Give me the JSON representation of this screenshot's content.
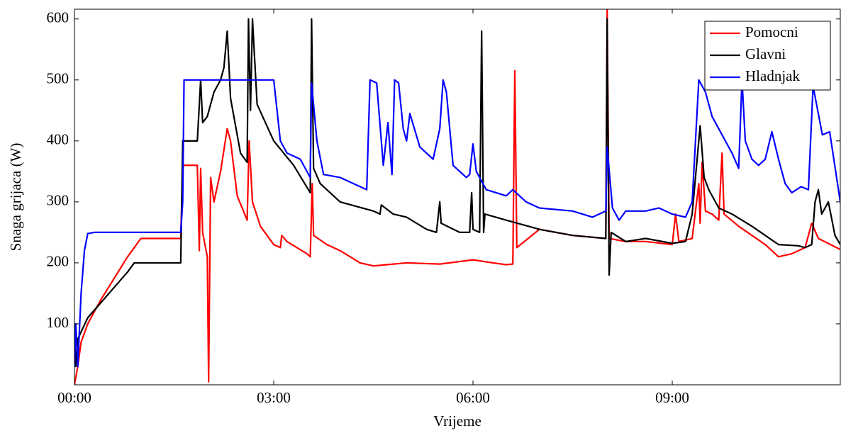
{
  "chart_data": {
    "type": "line",
    "x_label": "Vrijeme",
    "y_label": "Snaga grijaca (W)",
    "xlim": [
      0,
      11.53
    ],
    "ylim": [
      0,
      616
    ],
    "xticks": [
      {
        "value": 0,
        "label": "00:00"
      },
      {
        "value": 3,
        "label": "03:00"
      },
      {
        "value": 6,
        "label": "06:00"
      },
      {
        "value": 9,
        "label": "09:00"
      }
    ],
    "yticks": [
      100,
      200,
      300,
      400,
      500,
      600
    ],
    "legend": "top-right",
    "series": [
      {
        "name": "Pomocni",
        "color": "#ff0000",
        "x": [
          0,
          0.05,
          0.1,
          0.2,
          0.4,
          0.6,
          0.8,
          0.9,
          1.0,
          1.6,
          1.63,
          1.85,
          1.88,
          1.9,
          1.93,
          2.0,
          2.02,
          2.05,
          2.1,
          2.2,
          2.3,
          2.35,
          2.45,
          2.6,
          2.63,
          2.68,
          2.8,
          3.0,
          3.1,
          3.12,
          3.2,
          3.5,
          3.55,
          3.58,
          3.6,
          3.8,
          4.0,
          4.3,
          4.5,
          5.0,
          5.5,
          6.0,
          6.3,
          6.5,
          6.6,
          6.63,
          6.66,
          7.0,
          7.5,
          8.0,
          8.02,
          8.05,
          8.3,
          8.6,
          9.0,
          9.05,
          9.1,
          9.3,
          9.4,
          9.42,
          9.45,
          9.5,
          9.6,
          9.7,
          9.75,
          9.78,
          10.0,
          10.2,
          10.4,
          10.6,
          10.8,
          11.0,
          11.1,
          11.2,
          11.53
        ],
        "values": [
          0,
          30,
          70,
          100,
          140,
          175,
          210,
          225,
          240,
          240,
          360,
          360,
          220,
          355,
          250,
          210,
          5,
          340,
          300,
          350,
          420,
          400,
          310,
          270,
          400,
          300,
          260,
          230,
          225,
          245,
          235,
          215,
          210,
          330,
          245,
          230,
          220,
          200,
          195,
          200,
          198,
          205,
          200,
          197,
          198,
          515,
          225,
          255,
          245,
          240,
          615,
          240,
          235,
          235,
          230,
          280,
          235,
          240,
          330,
          265,
          365,
          285,
          280,
          270,
          380,
          280,
          260,
          245,
          230,
          210,
          215,
          225,
          265,
          240,
          222
        ]
      },
      {
        "name": "Glavni",
        "color": "#000000",
        "x": [
          0,
          0.02,
          0.05,
          0.2,
          0.4,
          0.6,
          0.8,
          0.9,
          1.6,
          1.63,
          1.85,
          1.9,
          1.93,
          2.0,
          2.1,
          2.2,
          2.25,
          2.3,
          2.35,
          2.5,
          2.6,
          2.62,
          2.65,
          2.68,
          2.75,
          3.0,
          3.3,
          3.55,
          3.57,
          3.6,
          3.7,
          4.0,
          4.5,
          4.6,
          4.62,
          4.8,
          5.0,
          5.3,
          5.45,
          5.5,
          5.52,
          5.8,
          5.95,
          5.98,
          6.0,
          6.1,
          6.13,
          6.16,
          6.18,
          6.5,
          7.0,
          7.5,
          8.0,
          8.02,
          8.05,
          8.08,
          8.3,
          8.6,
          9.0,
          9.2,
          9.3,
          9.42,
          9.48,
          9.55,
          9.7,
          9.9,
          10.2,
          10.6,
          10.9,
          11.0,
          11.1,
          11.15,
          11.2,
          11.25,
          11.35,
          11.45,
          11.53
        ],
        "values": [
          100,
          30,
          75,
          110,
          135,
          160,
          185,
          200,
          200,
          400,
          400,
          500,
          430,
          440,
          480,
          500,
          520,
          580,
          470,
          380,
          365,
          600,
          450,
          600,
          460,
          400,
          360,
          315,
          600,
          355,
          330,
          300,
          285,
          280,
          295,
          280,
          275,
          255,
          250,
          300,
          265,
          250,
          250,
          315,
          255,
          250,
          580,
          250,
          280,
          270,
          255,
          245,
          240,
          600,
          180,
          250,
          235,
          240,
          232,
          235,
          280,
          425,
          340,
          320,
          290,
          280,
          260,
          230,
          228,
          225,
          230,
          300,
          320,
          280,
          300,
          245,
          230
        ]
      },
      {
        "name": "Hladnjak",
        "color": "#0000ff",
        "x": [
          0,
          0.02,
          0.05,
          0.1,
          0.15,
          0.2,
          0.3,
          1.6,
          1.63,
          1.65,
          3.0,
          3.1,
          3.2,
          3.4,
          3.5,
          3.55,
          3.57,
          3.65,
          3.75,
          4.0,
          4.3,
          4.4,
          4.45,
          4.55,
          4.62,
          4.65,
          4.72,
          4.78,
          4.82,
          4.88,
          4.95,
          5.0,
          5.05,
          5.2,
          5.4,
          5.5,
          5.55,
          5.6,
          5.7,
          5.9,
          5.95,
          6.0,
          6.05,
          6.2,
          6.5,
          6.6,
          6.8,
          7.0,
          7.5,
          7.8,
          8.0,
          8.02,
          8.1,
          8.2,
          8.3,
          8.6,
          8.8,
          9.0,
          9.2,
          9.3,
          9.4,
          9.5,
          9.6,
          9.8,
          9.9,
          10.0,
          10.05,
          10.1,
          10.2,
          10.3,
          10.4,
          10.5,
          10.6,
          10.7,
          10.8,
          10.94,
          11.05,
          11.12,
          11.26,
          11.37,
          11.53
        ],
        "values": [
          30,
          100,
          30,
          150,
          220,
          248,
          250,
          250,
          300,
          500,
          500,
          400,
          380,
          370,
          350,
          340,
          495,
          400,
          345,
          340,
          325,
          320,
          500,
          495,
          400,
          360,
          430,
          345,
          500,
          495,
          420,
          400,
          445,
          390,
          370,
          420,
          500,
          480,
          360,
          340,
          345,
          395,
          350,
          320,
          310,
          320,
          300,
          290,
          285,
          275,
          285,
          390,
          290,
          270,
          285,
          285,
          290,
          280,
          275,
          300,
          500,
          480,
          440,
          400,
          380,
          355,
          500,
          400,
          370,
          360,
          370,
          415,
          370,
          330,
          315,
          325,
          320,
          490,
          410,
          415,
          300
        ]
      }
    ]
  }
}
